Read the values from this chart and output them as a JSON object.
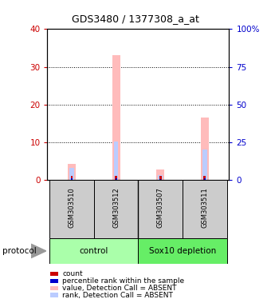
{
  "title": "GDS3480 / 1377308_a_at",
  "samples": [
    "GSM303510",
    "GSM303512",
    "GSM303507",
    "GSM303511"
  ],
  "groups": [
    {
      "label": "control",
      "samples": [
        0,
        1
      ],
      "color": "#aaffaa"
    },
    {
      "label": "Sox10 depletion",
      "samples": [
        2,
        3
      ],
      "color": "#66ee66"
    }
  ],
  "pink_bars": [
    4.2,
    33.0,
    2.7,
    16.5
  ],
  "lightblue_bars": [
    8.0,
    25.5,
    3.0,
    20.0
  ],
  "red_vals": [
    1.0,
    1.0,
    1.0,
    1.0
  ],
  "blue_vals": [
    1.0,
    1.0,
    0.5,
    1.0
  ],
  "ylim_left": [
    0,
    40
  ],
  "ylim_right": [
    0,
    100
  ],
  "yticks_left": [
    0,
    10,
    20,
    30,
    40
  ],
  "yticks_right": [
    0,
    25,
    50,
    75,
    100
  ],
  "ytick_labels_right": [
    "0",
    "25",
    "50",
    "75",
    "100%"
  ],
  "color_pink": "#ffbbbb",
  "color_lightblue": "#bbccff",
  "color_red": "#cc0000",
  "color_blue": "#0000cc",
  "color_left_axis": "#cc0000",
  "color_right_axis": "#0000cc",
  "protocol_label": "protocol",
  "legend_items": [
    {
      "color": "#cc0000",
      "label": "count"
    },
    {
      "color": "#0000cc",
      "label": "percentile rank within the sample"
    },
    {
      "color": "#ffbbbb",
      "label": "value, Detection Call = ABSENT"
    },
    {
      "color": "#bbccff",
      "label": "rank, Detection Call = ABSENT"
    }
  ]
}
